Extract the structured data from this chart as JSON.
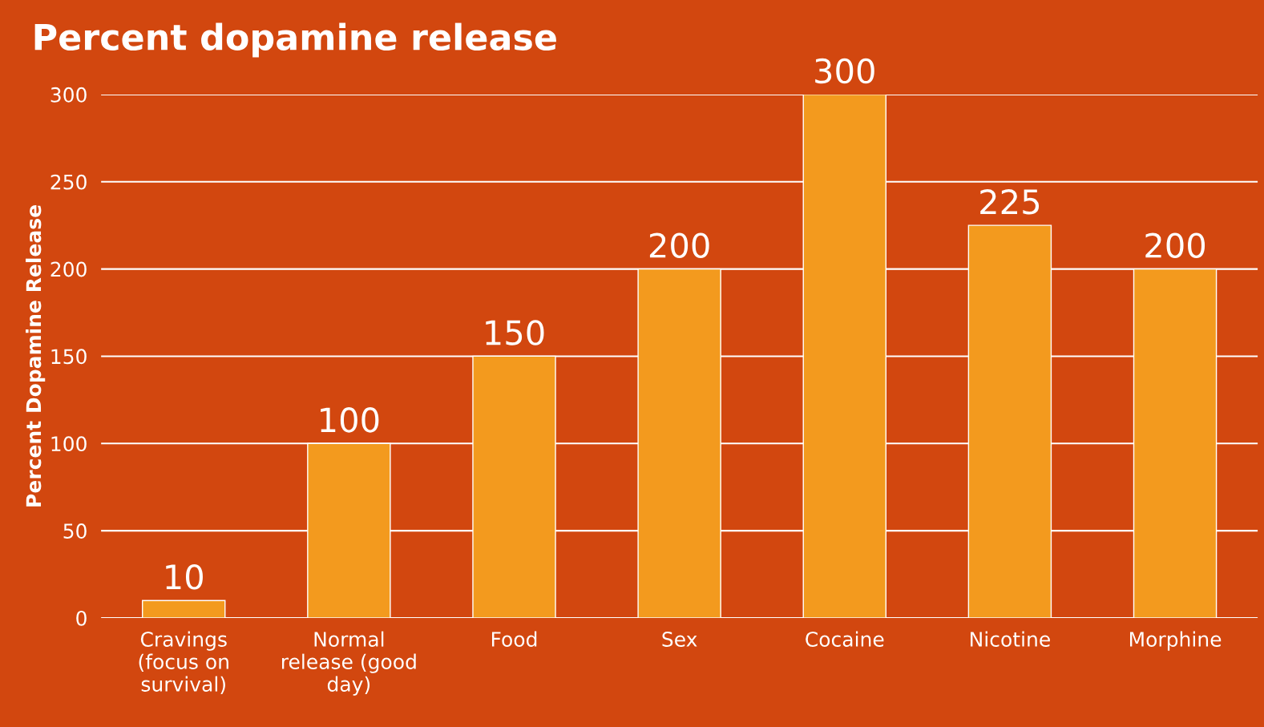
{
  "chart_data": {
    "type": "bar",
    "title": "Percent dopamine release",
    "ylabel": "Percent Dopamine Release",
    "categories": [
      "Cravings\n(focus on\nsurvival)",
      "Normal\nrelease (good\nday)",
      "Food",
      "Sex",
      "Cocaine",
      "Nicotine",
      "Morphine"
    ],
    "values": [
      10,
      100,
      150,
      200,
      300,
      225,
      200
    ],
    "color": "#f39a1e",
    "ylim": [
      0,
      300
    ],
    "yticks": [
      0,
      50,
      100,
      150,
      200,
      250,
      300
    ],
    "grid": "y",
    "data_labels": true
  }
}
